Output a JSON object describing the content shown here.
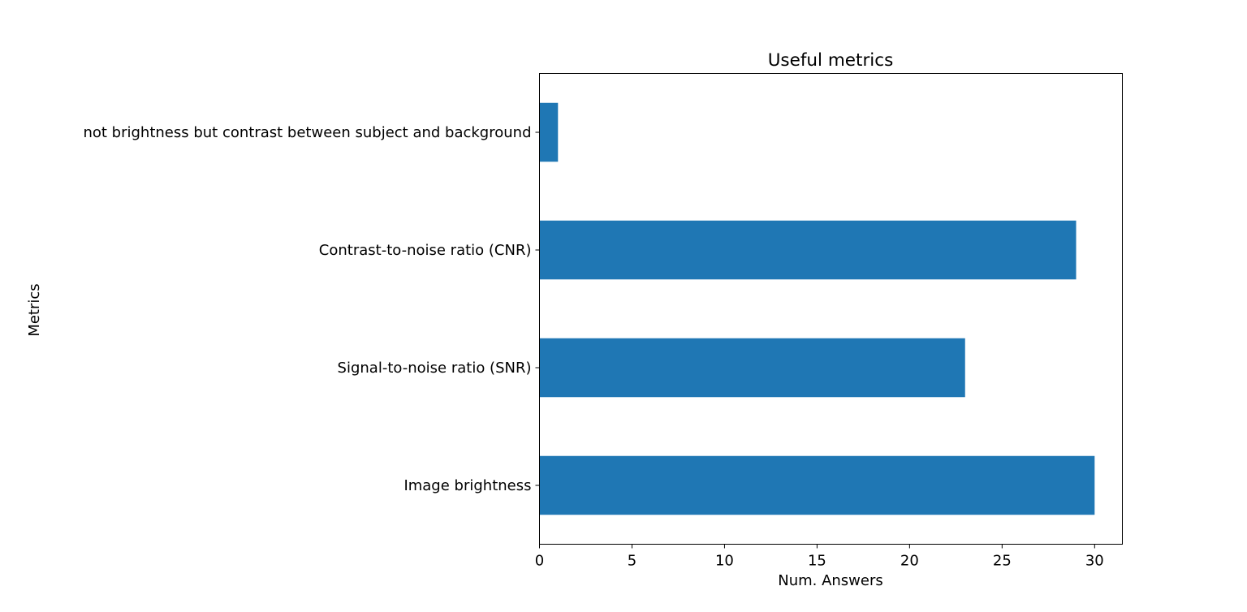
{
  "chart_data": {
    "type": "bar",
    "orientation": "horizontal",
    "title": "Useful metrics",
    "xlabel": "Num. Answers",
    "ylabel": "Metrics",
    "categories": [
      "Image brightness",
      "Signal-to-noise ratio (SNR)",
      "Contrast-to-noise ratio (CNR)",
      "not brightness but contrast between subject and background"
    ],
    "values": [
      30,
      23,
      29,
      1
    ],
    "xlim": [
      0,
      31.5
    ],
    "xticks": [
      "0",
      "5",
      "10",
      "15",
      "20",
      "25",
      "30"
    ],
    "bar_color": "#1f77b4",
    "grid": false,
    "legend": "none"
  }
}
